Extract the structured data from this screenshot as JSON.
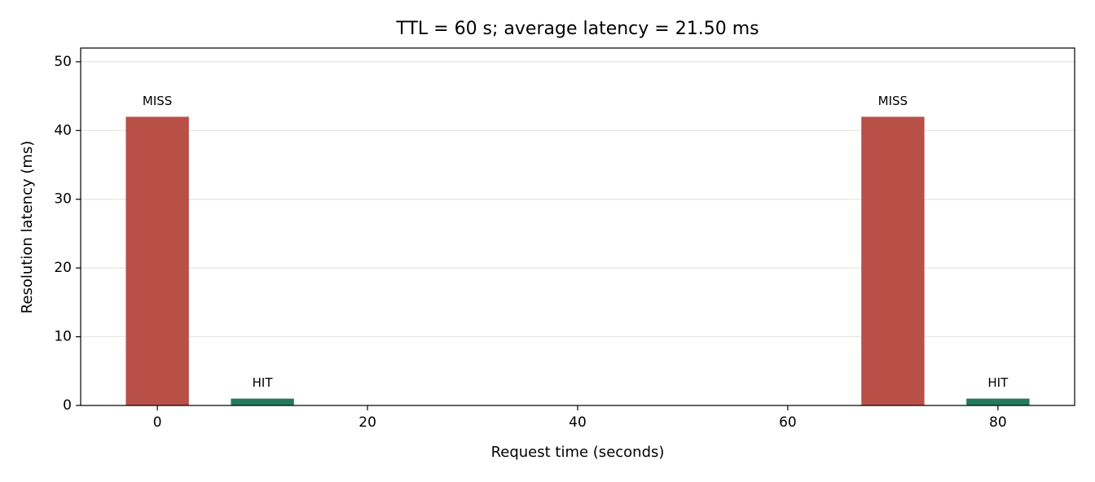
{
  "chart_data": {
    "type": "bar",
    "title": "TTL = 60 s; average latency = 21.50 ms",
    "x_label": "Request time (seconds)",
    "y_label": "Resolution latency (ms)",
    "x": [
      0,
      10,
      70,
      80
    ],
    "values": [
      42,
      1,
      42,
      1
    ],
    "bar_labels": [
      "MISS",
      "HIT",
      "MISS",
      "HIT"
    ],
    "colors": [
      "#b85047",
      "#237a5e",
      "#b85047",
      "#237a5e"
    ],
    "bar_width": 6,
    "xlim": [
      -7.3,
      87.3
    ],
    "ylim": [
      0,
      52
    ],
    "xticks": [
      0,
      20,
      40,
      60,
      80
    ],
    "yticks": [
      0,
      10,
      20,
      30,
      40,
      50
    ],
    "grid": true
  }
}
